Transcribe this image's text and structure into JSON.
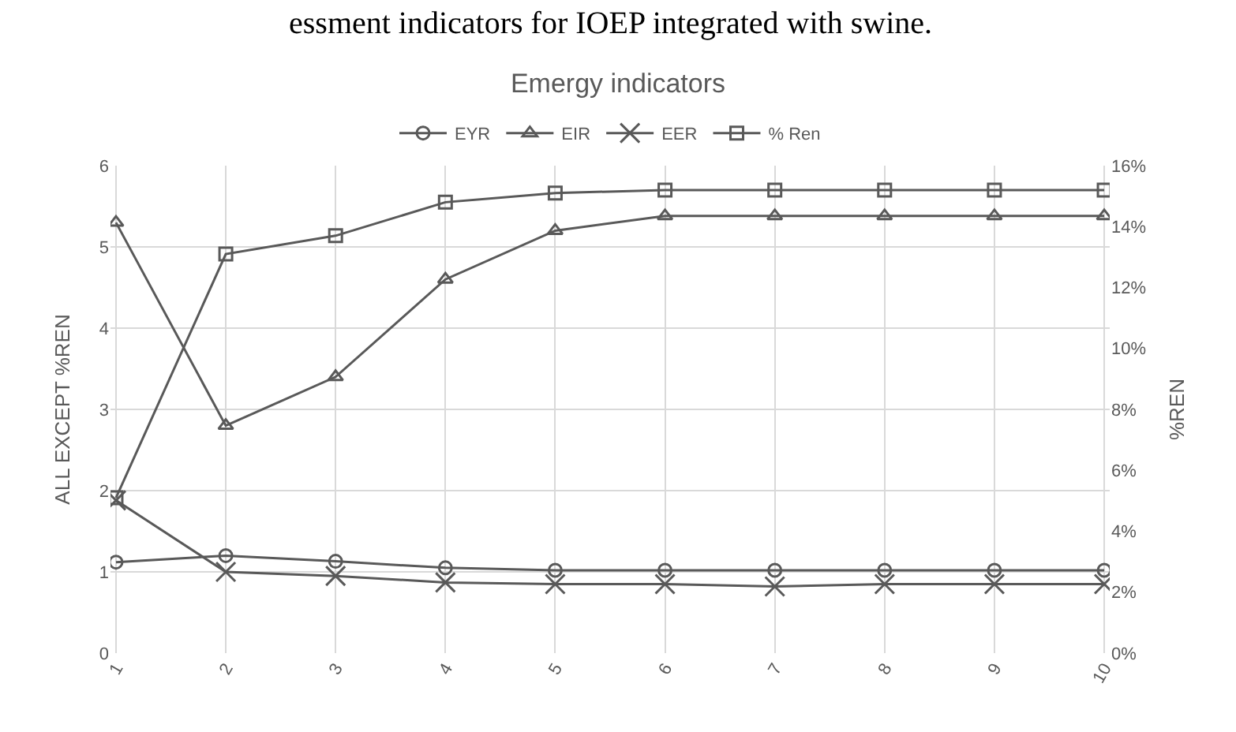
{
  "chart_data": {
    "type": "line",
    "title": "Emergy indicators",
    "annotations": [
      "essment indicators for IOEP integrated with swine."
    ],
    "categories": [
      "1",
      "2",
      "3",
      "4",
      "5",
      "6",
      "7",
      "8",
      "9",
      "10"
    ],
    "ylabel": "ALL EXCEPT %REN",
    "y2label": "%REN",
    "ylim": [
      0,
      6
    ],
    "yticks": [
      0,
      1,
      2,
      3,
      4,
      5,
      6
    ],
    "y2lim": [
      0,
      16
    ],
    "y2ticks": [
      {
        "value": 0,
        "label": "0%"
      },
      {
        "value": 2,
        "label": "2%"
      },
      {
        "value": 4,
        "label": "4%"
      },
      {
        "value": 6,
        "label": "6%"
      },
      {
        "value": 8,
        "label": "8%"
      },
      {
        "value": 10,
        "label": "10%"
      },
      {
        "value": 12,
        "label": "12%"
      },
      {
        "value": 14,
        "label": "14%"
      },
      {
        "value": 16,
        "label": "16%"
      }
    ],
    "grid": true,
    "legend": "top",
    "series": [
      {
        "name": "EYR",
        "color": "#595959",
        "marker": "circle",
        "values": [
          1.12,
          1.2,
          1.13,
          1.05,
          1.02,
          1.02,
          1.02,
          1.02,
          1.02,
          1.02
        ]
      },
      {
        "name": "EIR",
        "color": "#595959",
        "marker": "triangle",
        "values": [
          5.3,
          2.8,
          3.4,
          4.6,
          5.2,
          5.38,
          5.38,
          5.38,
          5.38,
          5.38
        ]
      },
      {
        "name": "EER",
        "color": "#595959",
        "marker": "cross",
        "values": [
          1.88,
          1.0,
          0.95,
          0.87,
          0.85,
          0.85,
          0.82,
          0.85,
          0.85,
          0.85
        ]
      },
      {
        "name": "% Ren",
        "color": "#595959",
        "marker": "square",
        "axis": "y2",
        "values": [
          5.1,
          13.1,
          13.7,
          14.8,
          15.1,
          15.2,
          15.2,
          15.2,
          15.2,
          15.2
        ]
      }
    ]
  }
}
